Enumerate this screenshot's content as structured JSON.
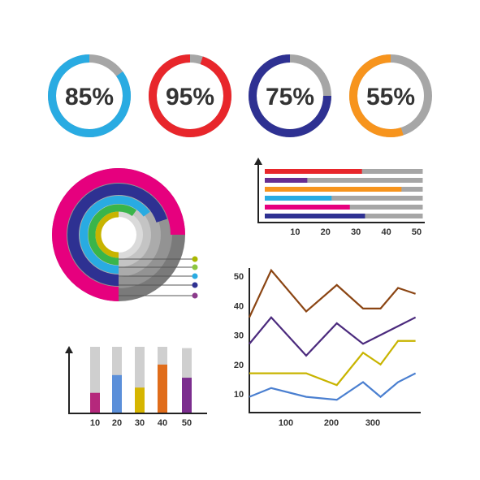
{
  "colors": {
    "track": "#a6a6a6",
    "text": "#333333",
    "axis": "#222222"
  },
  "rings": [
    {
      "label": "85%",
      "value": 85,
      "color": "#29abe2"
    },
    {
      "label": "95%",
      "value": 95,
      "color": "#e8262b"
    },
    {
      "label": "75%",
      "value": 75,
      "color": "#2e3192"
    },
    {
      "label": "55%",
      "value": 55,
      "color": "#f7941d"
    }
  ],
  "chart_data": [
    {
      "type": "pie",
      "variant": "concentric-rings",
      "rings": [
        {
          "color": "#e6007e",
          "value": 75
        },
        {
          "color": "#2e3192",
          "value": 70
        },
        {
          "color": "#29abe2",
          "value": 65
        },
        {
          "color": "#39b54a",
          "value": 60
        },
        {
          "color": "#c8b400",
          "value": 50
        }
      ],
      "legend_dots": [
        "#aab800",
        "#8cc63f",
        "#29abe2",
        "#2e3192",
        "#8b3a8b"
      ]
    },
    {
      "type": "bar",
      "orientation": "horizontal",
      "x_ticks": [
        "10",
        "20",
        "30",
        "40",
        "50"
      ],
      "xlim": [
        0,
        50
      ],
      "track_max": 52,
      "series": [
        {
          "value": 32,
          "color": "#e8262b"
        },
        {
          "value": 14,
          "color": "#662d91"
        },
        {
          "value": 45,
          "color": "#f7941d"
        },
        {
          "value": 22,
          "color": "#29abe2"
        },
        {
          "value": 28,
          "color": "#e6007e"
        },
        {
          "value": 33,
          "color": "#2e3192"
        }
      ]
    },
    {
      "type": "bar",
      "orientation": "vertical",
      "categories": [
        "10",
        "20",
        "30",
        "40",
        "50"
      ],
      "ylim": [
        0,
        100
      ],
      "track_values": [
        100,
        100,
        100,
        100,
        98
      ],
      "values": [
        30,
        57,
        38,
        73,
        53
      ],
      "colors": [
        "#b5287c",
        "#5b8fd9",
        "#d6b500",
        "#e06c1a",
        "#7b2d8e"
      ]
    },
    {
      "type": "line",
      "x_ticks": [
        "100",
        "200",
        "300"
      ],
      "y_ticks": [
        "10",
        "20",
        "30",
        "40",
        "50"
      ],
      "xlim": [
        0,
        390
      ],
      "ylim": [
        0,
        55
      ],
      "x": [
        0,
        50,
        130,
        200,
        260,
        300,
        340,
        380
      ],
      "series": [
        {
          "color": "#8b4513",
          "values": [
            36,
            52,
            38,
            47,
            39,
            39,
            46,
            44
          ]
        },
        {
          "color": "#4b2a7d",
          "values": [
            27,
            36,
            23,
            34,
            27,
            30,
            33,
            36
          ]
        },
        {
          "color": "#c8b400",
          "values": [
            17,
            17,
            17,
            13,
            24,
            20,
            28,
            28
          ]
        },
        {
          "color": "#4a7fd0",
          "values": [
            9,
            12,
            9,
            8,
            14,
            9,
            14,
            17
          ]
        }
      ]
    }
  ]
}
